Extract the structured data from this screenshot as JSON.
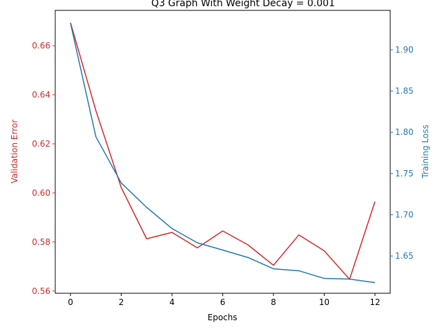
{
  "chart_data": {
    "type": "line",
    "title": "Q3 Graph With Weight Decay = 0.001",
    "xlabel": "Epochs",
    "ylabel_left": "Validation Error",
    "ylabel_right": "Training Loss",
    "x": [
      0,
      1,
      2,
      3,
      4,
      5,
      6,
      7,
      8,
      9,
      10,
      11,
      12
    ],
    "xlim": [
      -0.6,
      12.6
    ],
    "ylim_left": [
      0.5591,
      0.6744
    ],
    "ylim_right": [
      1.6048,
      1.9478
    ],
    "xticks": [
      0,
      2,
      4,
      6,
      8,
      10,
      12
    ],
    "yticks_left": [
      0.56,
      0.58,
      0.6,
      0.62,
      0.64,
      0.66
    ],
    "ytick_labels_left": [
      "0.56",
      "0.58",
      "0.60",
      "0.62",
      "0.64",
      "0.66"
    ],
    "yticks_right": [
      1.65,
      1.7,
      1.75,
      1.8,
      1.85,
      1.9
    ],
    "ytick_labels_right": [
      "1.65",
      "1.70",
      "1.75",
      "1.80",
      "1.85",
      "1.90"
    ],
    "grid": false,
    "series": [
      {
        "axis": "left",
        "color": "#d62728",
        "values": [
          0.6694,
          0.6336,
          0.6022,
          0.5813,
          0.5839,
          0.5776,
          0.5845,
          0.5788,
          0.5705,
          0.5829,
          0.5764,
          0.5648,
          0.5965
        ]
      },
      {
        "axis": "right",
        "color": "#1f77b4",
        "values": [
          1.9323,
          1.7947,
          1.7386,
          1.709,
          1.6833,
          1.666,
          1.6572,
          1.6481,
          1.6345,
          1.6321,
          1.6228,
          1.622,
          1.6177
        ]
      }
    ]
  }
}
